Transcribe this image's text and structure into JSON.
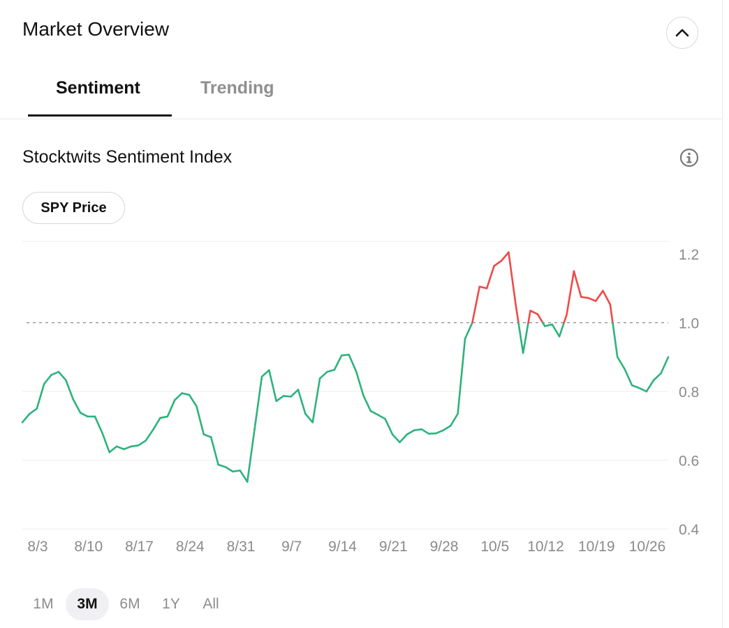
{
  "header": {
    "title": "Market Overview"
  },
  "tabs": [
    {
      "label": "Sentiment",
      "active": true
    },
    {
      "label": "Trending",
      "active": false
    }
  ],
  "section": {
    "title": "Stocktwits Sentiment Index",
    "overlay_button": "SPY Price"
  },
  "icons": {
    "collapse": "chevron-up-icon",
    "info": "info-icon"
  },
  "colors": {
    "above_threshold": "#ee4a47",
    "below_threshold": "#2db27d",
    "threshold_line": "#888888"
  },
  "ranges": [
    {
      "label": "1M",
      "active": false
    },
    {
      "label": "3M",
      "active": true
    },
    {
      "label": "6M",
      "active": false
    },
    {
      "label": "1Y",
      "active": false
    },
    {
      "label": "All",
      "active": false
    }
  ],
  "chart_data": {
    "type": "line",
    "title": "Stocktwits Sentiment Index",
    "xlabel": "",
    "ylabel": "",
    "ylim": [
      0.4,
      1.2
    ],
    "y_ticks": [
      "1.2",
      "1.0",
      "0.8",
      "0.6",
      "0.4"
    ],
    "y_tick_values": [
      1.2,
      1.0,
      0.8,
      0.6,
      0.4
    ],
    "threshold": 1.0,
    "x_tick_labels": [
      "8/3",
      "8/10",
      "8/17",
      "8/24",
      "8/31",
      "9/7",
      "9/14",
      "9/21",
      "9/28",
      "10/5",
      "10/12",
      "10/19",
      "10/26"
    ],
    "grid": true,
    "series": [
      {
        "values": [
          0.71,
          0.735,
          0.75,
          0.822,
          0.848,
          0.857,
          0.833,
          0.777,
          0.738,
          0.727,
          0.727,
          0.68,
          0.623,
          0.64,
          0.632,
          0.64,
          0.643,
          0.657,
          0.688,
          0.723,
          0.727,
          0.775,
          0.795,
          0.79,
          0.757,
          0.675,
          0.667,
          0.587,
          0.58,
          0.567,
          0.57,
          0.537,
          0.69,
          0.843,
          0.862,
          0.772,
          0.787,
          0.785,
          0.805,
          0.735,
          0.71,
          0.838,
          0.857,
          0.863,
          0.905,
          0.907,
          0.858,
          0.788,
          0.743,
          0.732,
          0.72,
          0.675,
          0.652,
          0.675,
          0.687,
          0.69,
          0.677,
          0.678,
          0.687,
          0.7,
          0.735,
          0.953,
          1.0,
          1.105,
          1.1,
          1.165,
          1.18,
          1.205,
          1.05,
          0.912,
          1.035,
          1.025,
          0.99,
          0.995,
          0.96,
          1.023,
          1.15,
          1.075,
          1.072,
          1.063,
          1.093,
          1.053,
          0.9,
          0.865,
          0.818,
          0.81,
          0.8,
          0.833,
          0.853,
          0.9
        ]
      }
    ]
  }
}
